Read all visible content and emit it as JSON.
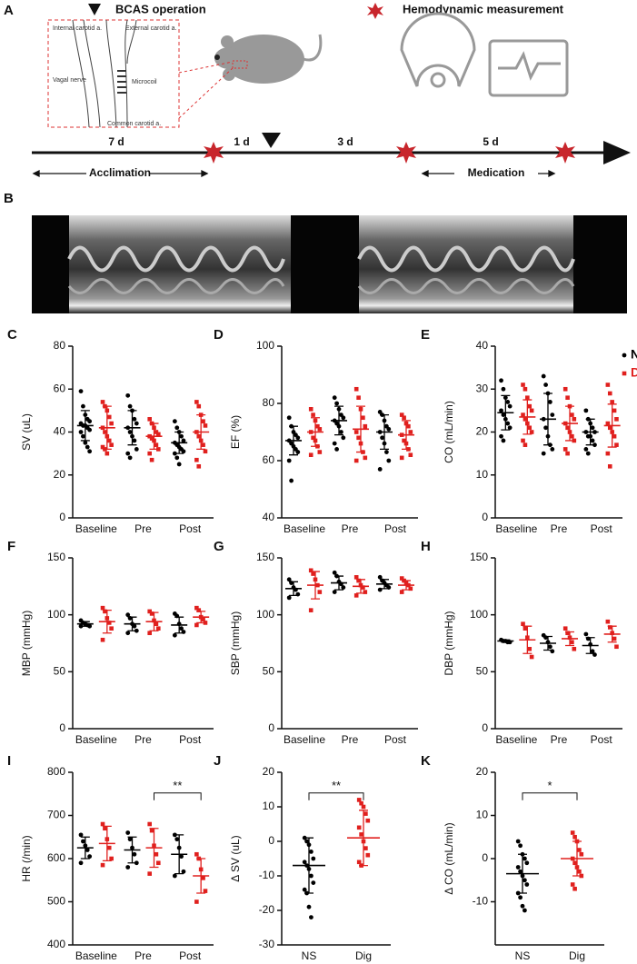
{
  "panel_a": {
    "label": "A",
    "bcas_label": "BCAS operation",
    "hemodynamic_label": "Hemodynamic measurement",
    "diagram_labels": [
      "Internal carotid a.",
      "External carotid a.",
      "Vagal nerve",
      "Microcoil",
      "Common carotid a."
    ],
    "durations": [
      "7 d",
      "1 d",
      "3 d",
      "5 d"
    ],
    "phases": [
      "Acclimation",
      "Medication"
    ]
  },
  "panel_b": {
    "label": "B"
  },
  "chart_data": [
    {
      "type": "dotplot",
      "panel": "C",
      "ylabel": "SV (uL)",
      "categories": [
        "Baseline",
        "Pre",
        "Post"
      ],
      "ylim": [
        0,
        80
      ],
      "yticks": [
        0,
        20,
        40,
        60,
        80
      ],
      "series": [
        {
          "color": "#000000",
          "values": [
            [
              59,
              52,
              48,
              46,
              45,
              44,
              43,
              43,
              42,
              41,
              40,
              38,
              35,
              33,
              31
            ],
            [
              57,
              52,
              50,
              46,
              44,
              42,
              40,
              38,
              36,
              32,
              30,
              28
            ],
            [
              45,
              42,
              40,
              38,
              36,
              35,
              34,
              33,
              32,
              31,
              30,
              28,
              25
            ]
          ],
          "means": [
            43,
            42,
            35
          ],
          "sds": [
            7,
            8,
            5
          ]
        },
        {
          "color": "#e0201e",
          "values": [
            [
              54,
              52,
              50,
              47,
              44,
              42,
              40,
              38,
              36,
              34,
              33,
              32,
              30
            ],
            [
              46,
              44,
              42,
              40,
              39,
              38,
              37,
              36,
              34,
              32,
              30,
              27
            ],
            [
              54,
              52,
              48,
              45,
              43,
              40,
              38,
              36,
              34,
              31,
              27,
              24
            ]
          ],
          "means": [
            42,
            38,
            40
          ],
          "sds": [
            10,
            6,
            8
          ]
        }
      ]
    },
    {
      "type": "dotplot",
      "panel": "D",
      "ylabel": "EF (%)",
      "categories": [
        "Baseline",
        "Pre",
        "Post"
      ],
      "ylim": [
        40,
        100
      ],
      "yticks": [
        40,
        60,
        80,
        100
      ],
      "series": [
        {
          "color": "#000000",
          "values": [
            [
              75,
              72,
              70,
              69,
              68,
              67,
              66,
              65,
              64,
              63,
              60,
              53
            ],
            [
              82,
              80,
              78,
              76,
              75,
              74,
              73,
              72,
              70,
              68,
              66,
              64
            ],
            [
              77,
              76,
              74,
              72,
              71,
              70,
              68,
              66,
              63,
              60,
              57
            ]
          ],
          "means": [
            67,
            74,
            70
          ],
          "sds": [
            5,
            5,
            6
          ]
        },
        {
          "color": "#e0201e",
          "values": [
            [
              78,
              76,
              74,
              72,
              71,
              70,
              68,
              67,
              65,
              63,
              62
            ],
            [
              85,
              82,
              78,
              75,
              72,
              70,
              68,
              66,
              63,
              61,
              60
            ],
            [
              76,
              75,
              73,
              72,
              70,
              69,
              67,
              66,
              64,
              62,
              61
            ]
          ],
          "means": [
            70,
            71,
            69
          ],
          "sds": [
            5,
            8,
            5
          ]
        }
      ]
    },
    {
      "type": "dotplot",
      "panel": "E",
      "ylabel": "CO (mL/min)",
      "categories": [
        "Baseline",
        "Pre",
        "Post"
      ],
      "ylim": [
        0,
        40
      ],
      "yticks": [
        0,
        10,
        20,
        30,
        40
      ],
      "legend": "top-right",
      "series": [
        {
          "name": "NS",
          "color": "#000000",
          "values": [
            [
              32,
              30,
              28,
              27,
              26,
              25,
              24,
              23,
              22,
              21,
              19,
              18
            ],
            [
              33,
              31,
              29,
              27,
              24,
              23,
              21,
              19,
              17,
              16,
              15
            ],
            [
              25,
              23,
              22,
              21,
              20,
              20,
              19,
              19,
              18,
              17,
              16,
              15
            ]
          ],
          "means": [
            24.5,
            23,
            20
          ],
          "sds": [
            4,
            6,
            3
          ]
        },
        {
          "name": "Dig",
          "color": "#e0201e",
          "values": [
            [
              31,
              30,
              28,
              26,
              25,
              24,
              23,
              22,
              21,
              20,
              18,
              17
            ],
            [
              30,
              28,
              26,
              24,
              23,
              22,
              21,
              20,
              19,
              18,
              16,
              15
            ],
            [
              31,
              29,
              27,
              25,
              23,
              22,
              21,
              20,
              19,
              17,
              15,
              12
            ]
          ],
          "means": [
            23.5,
            22,
            21.5
          ],
          "sds": [
            4,
            4,
            5
          ]
        }
      ]
    },
    {
      "type": "dotplot",
      "panel": "F",
      "ylabel": "MBP (mmHg)",
      "categories": [
        "Baseline",
        "Pre",
        "Post"
      ],
      "ylim": [
        0,
        150
      ],
      "yticks": [
        0,
        50,
        100,
        150
      ],
      "series": [
        {
          "color": "#000000",
          "values": [
            [
              95,
              93,
              92,
              91,
              90,
              90
            ],
            [
              100,
              97,
              92,
              90,
              86,
              84
            ],
            [
              101,
              99,
              92,
              88,
              85,
              82
            ]
          ],
          "means": [
            92,
            92,
            91
          ],
          "sds": [
            2,
            6,
            7
          ]
        },
        {
          "color": "#e0201e",
          "values": [
            [
              106,
              103,
              97,
              93,
              88,
              78
            ],
            [
              103,
              101,
              95,
              92,
              88,
              84
            ],
            [
              106,
              104,
              98,
              96,
              93,
              91
            ]
          ],
          "means": [
            94,
            94,
            98
          ],
          "sds": [
            10,
            8,
            5
          ]
        }
      ]
    },
    {
      "type": "dotplot",
      "panel": "G",
      "ylabel": "SBP (mmHg)",
      "categories": [
        "Baseline",
        "Pre",
        "Post"
      ],
      "ylim": [
        0,
        150
      ],
      "yticks": [
        0,
        50,
        100,
        150
      ],
      "series": [
        {
          "color": "#000000",
          "values": [
            [
              131,
              128,
              124,
              122,
              118,
              115
            ],
            [
              137,
              134,
              129,
              127,
              124,
              120
            ],
            [
              133,
              130,
              128,
              126,
              124,
              122
            ]
          ],
          "means": [
            123,
            128,
            127
          ],
          "sds": [
            6,
            6,
            4
          ]
        },
        {
          "color": "#e0201e",
          "values": [
            [
              139,
              136,
              131,
              126,
              120,
              104
            ],
            [
              133,
              130,
              126,
              124,
              120,
              117
            ],
            [
              132,
              130,
              128,
              126,
              123,
              120
            ]
          ],
          "means": [
            126,
            125,
            126
          ],
          "sds": [
            12,
            6,
            4
          ]
        }
      ]
    },
    {
      "type": "dotplot",
      "panel": "H",
      "ylabel": "DBP (mmHg)",
      "categories": [
        "Baseline",
        "Pre",
        "Post"
      ],
      "ylim": [
        0,
        150
      ],
      "yticks": [
        0,
        50,
        100,
        150
      ],
      "series": [
        {
          "color": "#000000",
          "values": [
            [
              78,
              77,
              77,
              76,
              76
            ],
            [
              82,
              80,
              76,
              72,
              68
            ],
            [
              83,
              79,
              74,
              68,
              65
            ]
          ],
          "means": [
            77,
            75,
            73
          ],
          "sds": [
            1,
            6,
            7
          ]
        },
        {
          "color": "#e0201e",
          "values": [
            [
              92,
              88,
              80,
              70,
              63
            ],
            [
              88,
              84,
              80,
              76,
              70
            ],
            [
              94,
              89,
              84,
              79,
              72
            ]
          ],
          "means": [
            78,
            79,
            83
          ],
          "sds": [
            12,
            6,
            7
          ]
        }
      ]
    },
    {
      "type": "dotplot",
      "panel": "I",
      "ylabel": "HR (/min)",
      "categories": [
        "Baseline",
        "Pre",
        "Post"
      ],
      "ylim": [
        400,
        800
      ],
      "yticks": [
        400,
        500,
        600,
        700,
        800
      ],
      "annotation": "**",
      "series": [
        {
          "color": "#000000",
          "values": [
            [
              655,
              640,
              630,
              620,
              605,
              590
            ],
            [
              660,
              645,
              625,
              610,
              590,
              580
            ],
            [
              655,
              645,
              625,
              605,
              570,
              560
            ]
          ],
          "means": [
            625,
            620,
            610
          ],
          "sds": [
            25,
            30,
            45
          ]
        },
        {
          "color": "#e0201e",
          "values": [
            [
              680,
              670,
              645,
              625,
              600,
              585
            ],
            [
              680,
              665,
              630,
              610,
              590,
              565
            ],
            [
              610,
              600,
              575,
              555,
              525,
              500
            ]
          ],
          "means": [
            635,
            625,
            560
          ],
          "sds": [
            40,
            45,
            40
          ]
        }
      ]
    },
    {
      "type": "dotplot",
      "panel": "J",
      "ylabel": "Δ SV (uL)",
      "categories": [
        "NS",
        "Dig"
      ],
      "ylim": [
        -30,
        20
      ],
      "yticks": [
        -30,
        -20,
        -10,
        0,
        10,
        20
      ],
      "annotation": "**",
      "series": [
        {
          "color": "#000000",
          "values": [
            [
              1,
              0,
              -1,
              -3,
              -5,
              -6,
              -7,
              -8,
              -10,
              -12,
              -14,
              -15,
              -19,
              -22
            ],
            null
          ],
          "means": [
            -7,
            null
          ],
          "sds": [
            8,
            null
          ]
        },
        {
          "color": "#e0201e",
          "values": [
            null,
            [
              12,
              11,
              10,
              8,
              6,
              4,
              2,
              0,
              -2,
              -4,
              -6,
              -7
            ]
          ],
          "means": [
            null,
            1
          ],
          "sds": [
            null,
            8
          ]
        }
      ]
    },
    {
      "type": "dotplot",
      "panel": "K",
      "ylabel": "Δ CO (mL/min)",
      "categories": [
        "NS",
        "Dig"
      ],
      "ylim": [
        -20,
        20
      ],
      "yticks": [
        -10,
        0,
        10,
        20
      ],
      "annotation": "*",
      "series": [
        {
          "color": "#000000",
          "values": [
            [
              4,
              3,
              1,
              0,
              -1,
              -2,
              -3,
              -4,
              -5,
              -6,
              -8,
              -9,
              -11,
              -12
            ],
            null
          ],
          "means": [
            -3.5,
            null
          ],
          "sds": [
            4.5,
            null
          ]
        },
        {
          "color": "#e0201e",
          "values": [
            null,
            [
              6,
              5,
              4,
              2,
              1,
              0,
              -1,
              -2,
              -3,
              -4,
              -6,
              -7
            ]
          ],
          "means": [
            null,
            0
          ],
          "sds": [
            null,
            4
          ]
        }
      ]
    }
  ]
}
